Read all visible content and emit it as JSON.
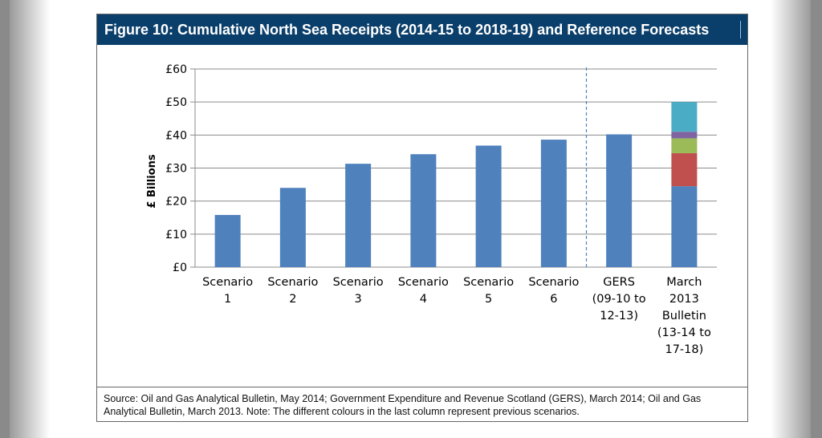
{
  "figure": {
    "title": "Figure 10: Cumulative North Sea Receipts (2014-15 to 2018-19) and Reference Forecasts",
    "source": "Source: Oil and Gas Analytical Bulletin, May 2014; Government Expenditure and Revenue Scotland (GERS), March 2014; Oil and Gas Analytical Bulletin, March 2013.  Note: The different colours in the last column represent previous scenarios."
  },
  "chart_data": {
    "type": "bar",
    "title": "Figure 10: Cumulative North Sea Receipts (2014-15 to 2018-19) and Reference Forecasts",
    "ylabel": "£ Billions",
    "xlabel": "",
    "ylim": [
      0,
      60
    ],
    "yticks": [
      0,
      10,
      20,
      30,
      40,
      50,
      60
    ],
    "ytick_labels": [
      "£0",
      "£10",
      "£20",
      "£30",
      "£40",
      "£50",
      "£60"
    ],
    "grid": true,
    "separator_after_category_index": 5,
    "categories": [
      {
        "lines": [
          "Scenario",
          "1"
        ]
      },
      {
        "lines": [
          "Scenario",
          "2"
        ]
      },
      {
        "lines": [
          "Scenario",
          "3"
        ]
      },
      {
        "lines": [
          "Scenario",
          "4"
        ]
      },
      {
        "lines": [
          "Scenario",
          "5"
        ]
      },
      {
        "lines": [
          "Scenario",
          "6"
        ]
      },
      {
        "lines": [
          "GERS",
          "(09-10 to",
          "12-13)"
        ]
      },
      {
        "lines": [
          "March",
          "2013",
          "Bulletin",
          "(13-14 to",
          "17-18)"
        ]
      }
    ],
    "bars": [
      {
        "segments": [
          {
            "value": 15.8,
            "color": "#4f81bd"
          }
        ]
      },
      {
        "segments": [
          {
            "value": 24.0,
            "color": "#4f81bd"
          }
        ]
      },
      {
        "segments": [
          {
            "value": 31.3,
            "color": "#4f81bd"
          }
        ]
      },
      {
        "segments": [
          {
            "value": 34.2,
            "color": "#4f81bd"
          }
        ]
      },
      {
        "segments": [
          {
            "value": 36.8,
            "color": "#4f81bd"
          }
        ]
      },
      {
        "segments": [
          {
            "value": 38.6,
            "color": "#4f81bd"
          }
        ]
      },
      {
        "segments": [
          {
            "value": 40.2,
            "color": "#4f81bd"
          }
        ]
      },
      {
        "segments": [
          {
            "value": 24.5,
            "color": "#4f81bd"
          },
          {
            "value": 10.0,
            "color": "#c0504d"
          },
          {
            "value": 4.5,
            "color": "#9bbb59"
          },
          {
            "value": 2.0,
            "color": "#8064a2"
          },
          {
            "value": 9.0,
            "color": "#4bacc6"
          }
        ]
      }
    ]
  }
}
